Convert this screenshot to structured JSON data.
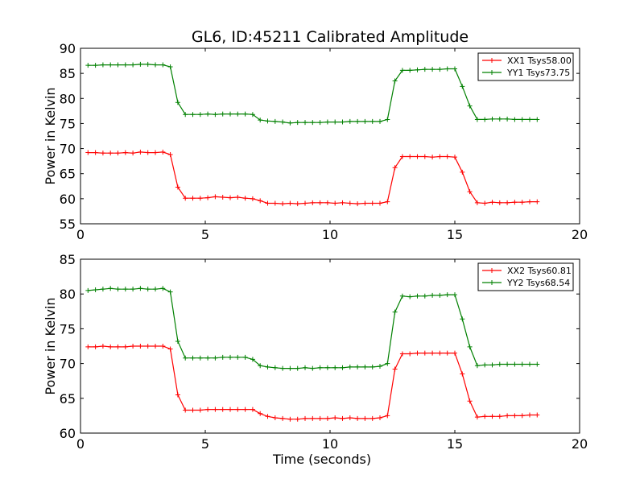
{
  "title": "GL6, ID:45211 Calibrated Amplitude",
  "chart_data": [
    {
      "type": "line",
      "ylabel": "Power in Kelvin",
      "xlabel": "",
      "xlim": [
        0,
        20
      ],
      "ylim": [
        55,
        90
      ],
      "xticks": [
        0,
        5,
        10,
        15,
        20
      ],
      "yticks": [
        55,
        60,
        65,
        70,
        75,
        80,
        85,
        90
      ],
      "legend_position": "top-right",
      "x": [
        0.3,
        0.6,
        0.9,
        1.2,
        1.5,
        1.8,
        2.1,
        2.4,
        2.7,
        3.0,
        3.3,
        3.6,
        3.9,
        4.2,
        4.5,
        4.8,
        5.1,
        5.4,
        5.7,
        6.0,
        6.3,
        6.6,
        6.9,
        7.2,
        7.5,
        7.8,
        8.1,
        8.4,
        8.7,
        9.0,
        9.3,
        9.6,
        9.9,
        10.2,
        10.5,
        10.8,
        11.1,
        11.4,
        11.7,
        12.0,
        12.3,
        12.6,
        12.9,
        13.2,
        13.5,
        13.8,
        14.1,
        14.4,
        14.7,
        15.0,
        15.3,
        15.6,
        15.9,
        16.2,
        16.5,
        16.8,
        17.1,
        17.4,
        17.7,
        18.0,
        18.3
      ],
      "series": [
        {
          "name": "XX1 Tsys58.00",
          "color": "#ff0000",
          "values": [
            69.2,
            69.2,
            69.1,
            69.1,
            69.1,
            69.2,
            69.1,
            69.3,
            69.2,
            69.2,
            69.3,
            68.8,
            62.3,
            60.1,
            60.1,
            60.1,
            60.2,
            60.4,
            60.3,
            60.2,
            60.3,
            60.1,
            60.0,
            59.6,
            59.1,
            59.1,
            59.0,
            59.1,
            59.0,
            59.1,
            59.2,
            59.2,
            59.2,
            59.1,
            59.2,
            59.1,
            59.0,
            59.1,
            59.1,
            59.1,
            59.4,
            66.2,
            68.4,
            68.4,
            68.4,
            68.4,
            68.3,
            68.4,
            68.4,
            68.3,
            65.3,
            61.4,
            59.2,
            59.1,
            59.3,
            59.2,
            59.2,
            59.3,
            59.3,
            59.4,
            59.4
          ]
        },
        {
          "name": "YY1 Tsys73.75",
          "color": "#008000",
          "values": [
            86.6,
            86.6,
            86.7,
            86.7,
            86.7,
            86.7,
            86.7,
            86.8,
            86.8,
            86.7,
            86.7,
            86.3,
            79.2,
            76.8,
            76.8,
            76.8,
            76.9,
            76.8,
            76.9,
            76.9,
            76.9,
            76.9,
            76.8,
            75.7,
            75.5,
            75.4,
            75.3,
            75.1,
            75.2,
            75.2,
            75.2,
            75.2,
            75.3,
            75.3,
            75.3,
            75.4,
            75.4,
            75.4,
            75.4,
            75.4,
            75.8,
            83.5,
            85.6,
            85.6,
            85.7,
            85.8,
            85.8,
            85.8,
            85.9,
            85.9,
            82.4,
            78.5,
            75.8,
            75.8,
            75.9,
            75.9,
            75.9,
            75.8,
            75.8,
            75.8,
            75.8
          ]
        }
      ]
    },
    {
      "type": "line",
      "ylabel": "Power in Kelvin",
      "xlabel": "Time (seconds)",
      "xlim": [
        0,
        20
      ],
      "ylim": [
        60,
        85
      ],
      "xticks": [
        0,
        5,
        10,
        15,
        20
      ],
      "yticks": [
        60,
        65,
        70,
        75,
        80,
        85
      ],
      "legend_position": "top-right",
      "x": [
        0.3,
        0.6,
        0.9,
        1.2,
        1.5,
        1.8,
        2.1,
        2.4,
        2.7,
        3.0,
        3.3,
        3.6,
        3.9,
        4.2,
        4.5,
        4.8,
        5.1,
        5.4,
        5.7,
        6.0,
        6.3,
        6.6,
        6.9,
        7.2,
        7.5,
        7.8,
        8.1,
        8.4,
        8.7,
        9.0,
        9.3,
        9.6,
        9.9,
        10.2,
        10.5,
        10.8,
        11.1,
        11.4,
        11.7,
        12.0,
        12.3,
        12.6,
        12.9,
        13.2,
        13.5,
        13.8,
        14.1,
        14.4,
        14.7,
        15.0,
        15.3,
        15.6,
        15.9,
        16.2,
        16.5,
        16.8,
        17.1,
        17.4,
        17.7,
        18.0,
        18.3
      ],
      "series": [
        {
          "name": "XX2 Tsys60.81",
          "color": "#ff0000",
          "values": [
            72.4,
            72.4,
            72.5,
            72.4,
            72.4,
            72.4,
            72.5,
            72.5,
            72.5,
            72.5,
            72.5,
            72.1,
            65.5,
            63.3,
            63.3,
            63.3,
            63.4,
            63.4,
            63.4,
            63.4,
            63.4,
            63.4,
            63.4,
            62.8,
            62.4,
            62.2,
            62.1,
            62.0,
            62.0,
            62.1,
            62.1,
            62.1,
            62.1,
            62.2,
            62.1,
            62.2,
            62.1,
            62.1,
            62.1,
            62.2,
            62.5,
            69.2,
            71.4,
            71.4,
            71.5,
            71.5,
            71.5,
            71.5,
            71.5,
            71.5,
            68.5,
            64.6,
            62.3,
            62.4,
            62.4,
            62.4,
            62.5,
            62.5,
            62.5,
            62.6,
            62.6
          ]
        },
        {
          "name": "YY2 Tsys68.54",
          "color": "#008000",
          "values": [
            80.5,
            80.6,
            80.7,
            80.8,
            80.7,
            80.7,
            80.7,
            80.8,
            80.7,
            80.7,
            80.8,
            80.3,
            73.2,
            70.8,
            70.8,
            70.8,
            70.8,
            70.8,
            70.9,
            70.9,
            70.9,
            70.9,
            70.6,
            69.7,
            69.5,
            69.4,
            69.3,
            69.3,
            69.3,
            69.4,
            69.3,
            69.4,
            69.4,
            69.4,
            69.4,
            69.5,
            69.5,
            69.5,
            69.5,
            69.6,
            70.0,
            77.4,
            79.7,
            79.6,
            79.7,
            79.7,
            79.8,
            79.8,
            79.9,
            79.9,
            76.4,
            72.4,
            69.7,
            69.8,
            69.8,
            69.9,
            69.9,
            69.9,
            69.9,
            69.9,
            69.9
          ]
        }
      ]
    }
  ]
}
